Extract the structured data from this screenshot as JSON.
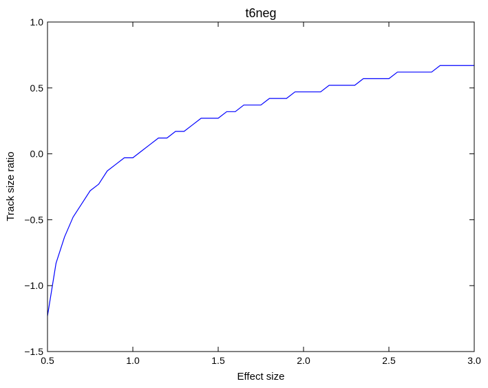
{
  "chart_data": {
    "type": "line",
    "title": "t6neg",
    "xlabel": "Effect size",
    "ylabel": "Track size ratio",
    "xlim": [
      0.5,
      3.0
    ],
    "ylim": [
      -1.5,
      1.0
    ],
    "xticks": [
      0.5,
      1.0,
      1.5,
      2.0,
      2.5,
      3.0
    ],
    "xtick_labels": [
      "0.5",
      "1.0",
      "1.5",
      "2.0",
      "2.5",
      "3.0"
    ],
    "yticks": [
      -1.5,
      -1.0,
      -0.5,
      0.0,
      0.5,
      1.0
    ],
    "ytick_labels": [
      "−1.5",
      "−1.0",
      "−0.5",
      "0.0",
      "0.5",
      "1.0"
    ],
    "grid": false,
    "series": [
      {
        "color": "#0000ff",
        "x": [
          0.5,
          0.55,
          0.6,
          0.65,
          0.7,
          0.75,
          0.8,
          0.85,
          0.9,
          0.95,
          1.0,
          1.05,
          1.1,
          1.15,
          1.2,
          1.25,
          1.3,
          1.35,
          1.4,
          1.45,
          1.5,
          1.55,
          1.6,
          1.65,
          1.7,
          1.75,
          1.8,
          1.85,
          1.9,
          1.95,
          2.0,
          2.05,
          2.1,
          2.15,
          2.2,
          2.25,
          2.3,
          2.35,
          2.4,
          2.45,
          2.5,
          2.55,
          2.6,
          2.65,
          2.7,
          2.75,
          2.8,
          2.85,
          2.9,
          2.95,
          3.0
        ],
        "y": [
          -1.23,
          -0.83,
          -0.63,
          -0.48,
          -0.38,
          -0.28,
          -0.23,
          -0.13,
          -0.08,
          -0.03,
          -0.03,
          0.02,
          0.07,
          0.12,
          0.12,
          0.17,
          0.17,
          0.22,
          0.27,
          0.27,
          0.27,
          0.32,
          0.32,
          0.37,
          0.37,
          0.37,
          0.42,
          0.42,
          0.42,
          0.47,
          0.47,
          0.47,
          0.47,
          0.52,
          0.52,
          0.52,
          0.52,
          0.57,
          0.57,
          0.57,
          0.57,
          0.62,
          0.62,
          0.62,
          0.62,
          0.62,
          0.67,
          0.67,
          0.67,
          0.67,
          0.67
        ]
      }
    ]
  }
}
